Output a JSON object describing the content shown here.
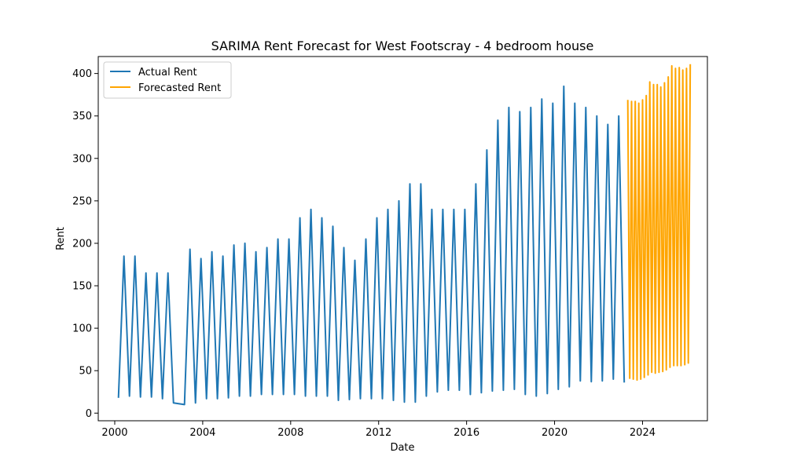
{
  "chart_data": {
    "type": "line",
    "title": "SARIMA Rent Forecast for West Footscray - 4 bedroom house",
    "xlabel": "Date",
    "ylabel": "Rent",
    "xlim": [
      1999.25,
      2026.95
    ],
    "ylim": [
      -9,
      420
    ],
    "x_ticks": [
      2000,
      2004,
      2008,
      2012,
      2016,
      2020,
      2024
    ],
    "y_ticks": [
      0,
      50,
      100,
      150,
      200,
      250,
      300,
      350,
      400
    ],
    "legend_position": "upper-left",
    "grid": false,
    "series": [
      {
        "name": "Actual Rent",
        "color": "#1f77b4",
        "x": [
          2000.17,
          2000.42,
          2000.67,
          2000.92,
          2001.17,
          2001.42,
          2001.67,
          2001.92,
          2002.17,
          2002.42,
          2002.67,
          2003.17,
          2003.42,
          2003.67,
          2003.92,
          2004.17,
          2004.42,
          2004.67,
          2004.92,
          2005.17,
          2005.42,
          2005.67,
          2005.92,
          2006.17,
          2006.42,
          2006.67,
          2006.92,
          2007.17,
          2007.42,
          2007.67,
          2007.92,
          2008.17,
          2008.42,
          2008.67,
          2008.92,
          2009.17,
          2009.42,
          2009.67,
          2009.92,
          2010.17,
          2010.42,
          2010.67,
          2010.92,
          2011.17,
          2011.42,
          2011.67,
          2011.92,
          2012.17,
          2012.42,
          2012.67,
          2012.92,
          2013.17,
          2013.42,
          2013.67,
          2013.92,
          2014.17,
          2014.42,
          2014.67,
          2014.92,
          2015.17,
          2015.42,
          2015.67,
          2015.92,
          2016.17,
          2016.42,
          2016.67,
          2016.92,
          2017.17,
          2017.42,
          2017.67,
          2017.92,
          2018.17,
          2018.42,
          2018.67,
          2018.92,
          2019.17,
          2019.42,
          2019.67,
          2019.92,
          2020.17,
          2020.42,
          2020.67,
          2020.92,
          2021.17,
          2021.42,
          2021.67,
          2021.92,
          2022.17,
          2022.42,
          2022.67,
          2022.92,
          2023.17
        ],
        "values": [
          18,
          185,
          20,
          185,
          19,
          165,
          19,
          165,
          17,
          165,
          12,
          10,
          193,
          12,
          182,
          17,
          190,
          17,
          185,
          18,
          198,
          20,
          200,
          20,
          190,
          22,
          195,
          22,
          205,
          22,
          205,
          22,
          230,
          20,
          240,
          20,
          230,
          20,
          220,
          15,
          195,
          16,
          180,
          17,
          205,
          17,
          230,
          17,
          240,
          15,
          250,
          13,
          270,
          13,
          270,
          20,
          240,
          25,
          240,
          27,
          240,
          27,
          240,
          22,
          270,
          24,
          310,
          26,
          345,
          27,
          360,
          28,
          355,
          22,
          360,
          20,
          370,
          23,
          365,
          28,
          385,
          31,
          365,
          38,
          360,
          37,
          350,
          38,
          340,
          40,
          350,
          36
        ]
      },
      {
        "name": "Forecasted Rent",
        "color": "#ffa500",
        "x": [
          2023.33,
          2023.42,
          2023.5,
          2023.58,
          2023.67,
          2023.75,
          2023.83,
          2023.92,
          2024.0,
          2024.08,
          2024.17,
          2024.25,
          2024.33,
          2024.42,
          2024.5,
          2024.58,
          2024.67,
          2024.75,
          2024.83,
          2024.92,
          2025.0,
          2025.08,
          2025.17,
          2025.25,
          2025.33,
          2025.42,
          2025.5,
          2025.58,
          2025.67,
          2025.75,
          2025.83,
          2025.92,
          2026.0,
          2026.08,
          2026.17
        ],
        "values": [
          369,
          41,
          367,
          40,
          367,
          39,
          365,
          40,
          369,
          42,
          374,
          45,
          390,
          48,
          387,
          47,
          387,
          48,
          384,
          49,
          389,
          51,
          396,
          54,
          409,
          56,
          406,
          56,
          407,
          56,
          404,
          57,
          406,
          59,
          411
        ]
      }
    ]
  }
}
